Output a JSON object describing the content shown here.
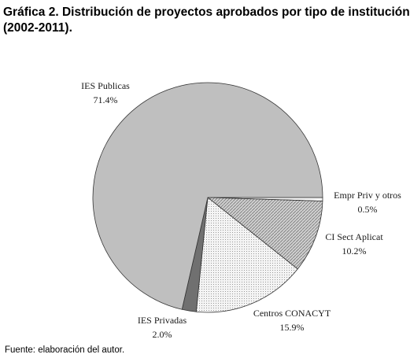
{
  "title_line1": "Gráfica 2. Distribución de proyectos aprobados por tipo de institución",
  "title_line2": " (2002-2011).",
  "source": "Fuente: elaboración del autor.",
  "chart_data": {
    "type": "pie",
    "start_angle_deg": 0,
    "direction": "clockwise",
    "slices": [
      {
        "label": "Empr Priv y otros",
        "value_label": "0.5%",
        "value": 0.5,
        "fill": "#f4f4f4",
        "pattern": "solid"
      },
      {
        "label": "CI Sect Aplicat",
        "value_label": "10.2%",
        "value": 10.2,
        "fill": "#c8c8c8",
        "pattern": "hatch"
      },
      {
        "label": "Centros  CONACYT",
        "value_label": "15.9%",
        "value": 15.9,
        "fill": "#f2f2f2",
        "pattern": "dots"
      },
      {
        "label": "IES Privadas",
        "value_label": "2.0%",
        "value": 2.0,
        "fill": "#707070",
        "pattern": "solid"
      },
      {
        "label": "IES Publicas",
        "value_label": "71.4%",
        "value": 71.4,
        "fill": "#bfbfbf",
        "pattern": "solid"
      }
    ]
  }
}
